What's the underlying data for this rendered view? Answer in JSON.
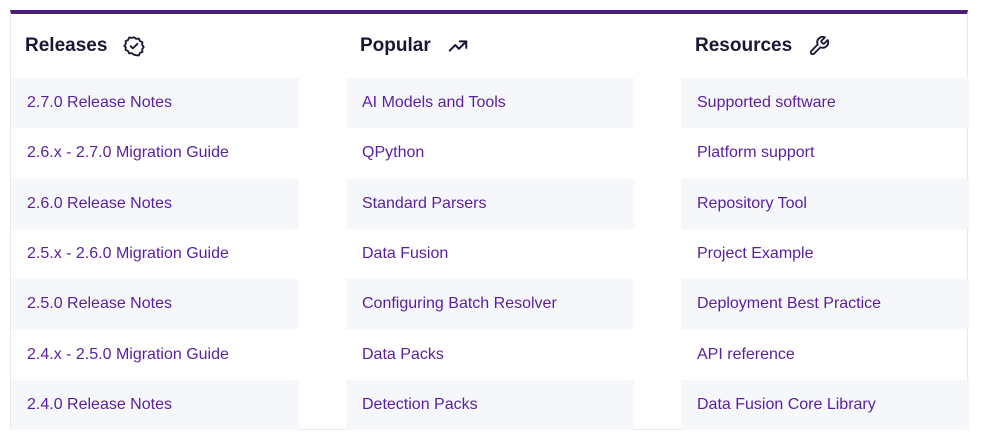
{
  "columns": [
    {
      "title": "Releases",
      "icon": "badge-check-icon",
      "items": [
        "2.7.0 Release Notes",
        "2.6.x - 2.7.0 Migration Guide",
        "2.6.0 Release Notes",
        "2.5.x - 2.6.0 Migration Guide",
        "2.5.0 Release Notes",
        "2.4.x - 2.5.0 Migration Guide",
        "2.4.0 Release Notes"
      ]
    },
    {
      "title": "Popular",
      "icon": "trending-up-icon",
      "items": [
        "AI Models and Tools",
        "QPython",
        "Standard Parsers",
        "Data Fusion",
        "Configuring Batch Resolver",
        "Data Packs",
        "Detection Packs"
      ]
    },
    {
      "title": "Resources",
      "icon": "wrench-icon",
      "items": [
        "Supported software",
        "Platform support",
        "Repository Tool",
        "Project Example",
        "Deployment Best Practice",
        "API reference",
        "Data Fusion Core Library"
      ]
    }
  ],
  "colors": {
    "accent_border": "#4b1e78",
    "link": "#5a1f9e",
    "heading": "#1a1633",
    "row_shade": "#f5f7fb"
  }
}
